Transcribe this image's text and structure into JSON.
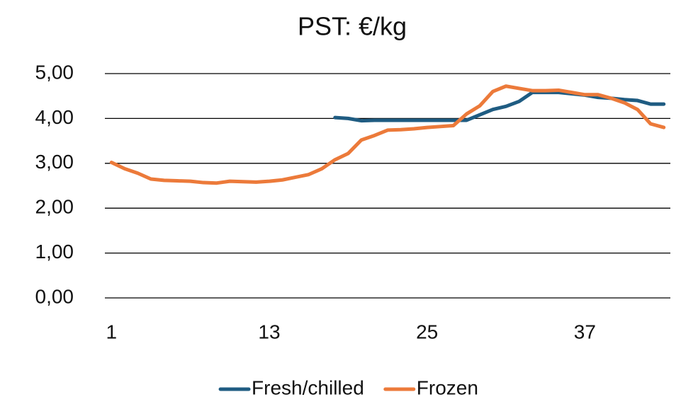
{
  "chart_data": {
    "type": "line",
    "title": "PST: €/kg",
    "x": [
      1,
      2,
      3,
      4,
      5,
      6,
      7,
      8,
      9,
      10,
      11,
      12,
      13,
      14,
      15,
      16,
      17,
      18,
      19,
      20,
      21,
      22,
      23,
      24,
      25,
      26,
      27,
      28,
      29,
      30,
      31,
      32,
      33,
      34,
      35,
      36,
      37,
      38,
      39,
      40,
      41,
      42,
      43
    ],
    "xlim": [
      0.5,
      43.5
    ],
    "xticks": [
      1,
      13,
      25,
      37
    ],
    "ylim": [
      0,
      5
    ],
    "yticks": [
      {
        "value": 0,
        "label": "0,00"
      },
      {
        "value": 1,
        "label": "1,00"
      },
      {
        "value": 2,
        "label": "2,00"
      },
      {
        "value": 3,
        "label": "3,00"
      },
      {
        "value": 4,
        "label": "4,00"
      },
      {
        "value": 5,
        "label": "5,00"
      }
    ],
    "grid": true,
    "legend": "bottom",
    "series": [
      {
        "name": "Fresh/chilled",
        "color": "#1f5c82",
        "values": [
          null,
          null,
          null,
          null,
          null,
          null,
          null,
          null,
          null,
          null,
          null,
          null,
          null,
          null,
          null,
          null,
          null,
          4.02,
          4.0,
          3.95,
          3.96,
          3.96,
          3.96,
          3.96,
          3.96,
          3.96,
          3.96,
          3.96,
          4.08,
          4.2,
          4.27,
          4.38,
          4.58,
          4.58,
          4.58,
          4.55,
          4.52,
          4.47,
          4.45,
          4.42,
          4.4,
          4.32,
          4.32
        ]
      },
      {
        "name": "Frozen",
        "color": "#ec7a3a",
        "values": [
          3.02,
          2.88,
          2.78,
          2.65,
          2.62,
          2.61,
          2.6,
          2.57,
          2.56,
          2.6,
          2.59,
          2.58,
          2.6,
          2.63,
          2.69,
          2.75,
          2.88,
          3.08,
          3.22,
          3.52,
          3.62,
          3.74,
          3.75,
          3.77,
          3.8,
          3.82,
          3.84,
          4.1,
          4.28,
          4.6,
          4.72,
          4.67,
          4.62,
          4.62,
          4.63,
          4.58,
          4.53,
          4.53,
          4.45,
          4.35,
          4.2,
          3.88,
          3.8
        ]
      }
    ]
  }
}
